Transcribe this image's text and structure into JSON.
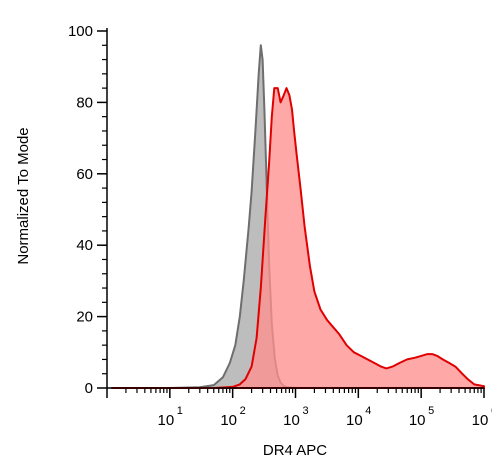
{
  "chart_data": {
    "type": "area",
    "title": "",
    "xlabel": "DR4 APC",
    "ylabel": "Normalized To Mode",
    "x_scale": "log",
    "xlim": [
      1,
      1000000
    ],
    "ylim": [
      0,
      100
    ],
    "y_ticks": [
      0,
      20,
      40,
      60,
      80,
      100
    ],
    "x_ticks": [
      {
        "base": "10",
        "exp": "1"
      },
      {
        "base": "10",
        "exp": "2"
      },
      {
        "base": "10",
        "exp": "3"
      },
      {
        "base": "10",
        "exp": "4"
      },
      {
        "base": "10",
        "exp": "5"
      },
      {
        "base": "10",
        "exp": "6"
      }
    ],
    "grid": false,
    "legend": "none",
    "series": [
      {
        "fill": "#bdbdbd",
        "stroke": "#6e6e6e",
        "x": [
          1.2,
          5,
          10,
          30,
          50,
          70,
          90,
          110,
          130,
          150,
          180,
          200,
          230,
          260,
          280,
          300,
          320,
          350,
          380,
          420,
          470,
          520,
          580,
          650,
          750,
          900,
          1100,
          1500,
          2000,
          10000,
          100000,
          1000000
        ],
        "y": [
          0,
          0,
          0,
          0.2,
          0.8,
          3,
          7,
          12,
          20,
          30,
          45,
          55,
          72,
          88,
          96,
          92,
          78,
          55,
          35,
          18,
          8,
          3.5,
          1.5,
          0.6,
          0.2,
          0.1,
          0,
          0,
          0,
          0,
          0,
          0
        ]
      },
      {
        "fill": "#ff8f8f",
        "stroke": "#e00000",
        "x": [
          1.2,
          10,
          50,
          100,
          130,
          160,
          200,
          240,
          280,
          330,
          380,
          420,
          460,
          520,
          580,
          650,
          720,
          800,
          880,
          950,
          1050,
          1200,
          1400,
          1700,
          2000,
          2500,
          3200,
          4000,
          5000,
          6500,
          8500,
          11000,
          14000,
          18000,
          23000,
          28000,
          35000,
          45000,
          60000,
          80000,
          100000,
          125000,
          150000,
          180000,
          220000,
          280000,
          350000,
          450000,
          550000,
          700000,
          1000000
        ],
        "y": [
          0,
          0,
          0,
          0.3,
          1,
          2.5,
          6,
          14,
          28,
          47,
          63,
          76,
          84,
          84,
          80,
          82,
          84,
          82,
          78,
          72,
          65,
          56,
          45,
          34,
          27,
          22,
          19,
          17,
          15,
          12,
          10,
          9,
          8,
          7,
          6,
          5.5,
          6,
          7,
          8,
          8.5,
          9,
          9.5,
          9.5,
          9,
          8,
          7,
          6,
          4,
          2.5,
          1,
          0.5
        ]
      }
    ]
  }
}
